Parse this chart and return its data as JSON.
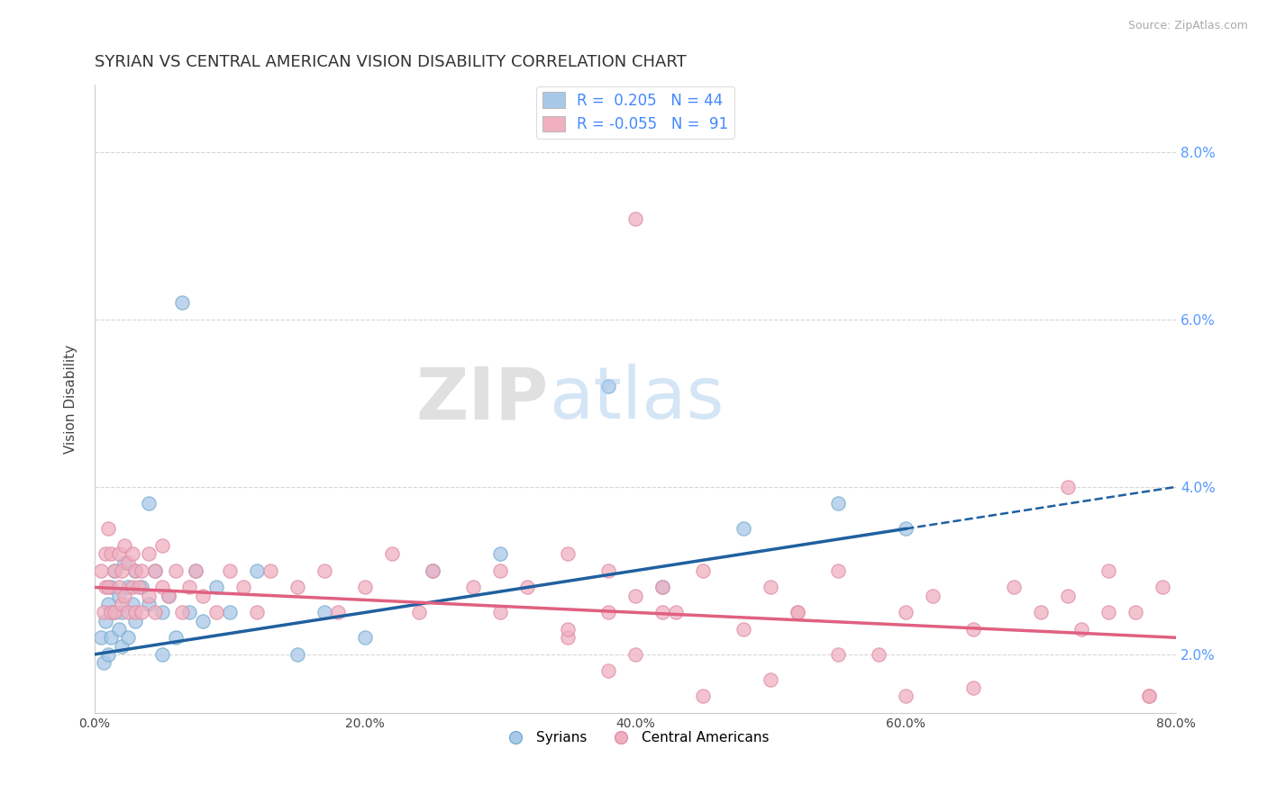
{
  "title": "SYRIAN VS CENTRAL AMERICAN VISION DISABILITY CORRELATION CHART",
  "source": "Source: ZipAtlas.com",
  "ylabel": "Vision Disability",
  "xlim": [
    0.0,
    0.8
  ],
  "ylim": [
    0.013,
    0.088
  ],
  "xticks": [
    0.0,
    0.1,
    0.2,
    0.3,
    0.4,
    0.5,
    0.6,
    0.7,
    0.8
  ],
  "xticklabels": [
    "0.0%",
    "",
    "20.0%",
    "",
    "40.0%",
    "",
    "60.0%",
    "",
    "80.0%"
  ],
  "yticks": [
    0.02,
    0.04,
    0.06,
    0.08
  ],
  "yticklabels": [
    "2.0%",
    "4.0%",
    "6.0%",
    "8.0%"
  ],
  "blue_color": "#a8c8e8",
  "blue_edge_color": "#7aaed0",
  "pink_color": "#f0b0c0",
  "pink_edge_color": "#e090a8",
  "blue_line_color": "#2060a0",
  "pink_line_color": "#e06080",
  "legend_text_color": "#4488ff",
  "R_blue": 0.205,
  "N_blue": 44,
  "R_pink": -0.055,
  "N_pink": 91,
  "blue_scatter_x": [
    0.005,
    0.007,
    0.008,
    0.01,
    0.01,
    0.012,
    0.012,
    0.015,
    0.015,
    0.018,
    0.018,
    0.02,
    0.02,
    0.022,
    0.025,
    0.025,
    0.028,
    0.03,
    0.03,
    0.035,
    0.04,
    0.04,
    0.045,
    0.05,
    0.05,
    0.055,
    0.06,
    0.065,
    0.07,
    0.075,
    0.08,
    0.09,
    0.1,
    0.12,
    0.15,
    0.17,
    0.2,
    0.25,
    0.3,
    0.38,
    0.42,
    0.48,
    0.55,
    0.6
  ],
  "blue_scatter_y": [
    0.022,
    0.019,
    0.024,
    0.026,
    0.02,
    0.028,
    0.022,
    0.03,
    0.025,
    0.023,
    0.027,
    0.025,
    0.021,
    0.031,
    0.028,
    0.022,
    0.026,
    0.03,
    0.024,
    0.028,
    0.038,
    0.026,
    0.03,
    0.025,
    0.02,
    0.027,
    0.022,
    0.062,
    0.025,
    0.03,
    0.024,
    0.028,
    0.025,
    0.03,
    0.02,
    0.025,
    0.022,
    0.03,
    0.032,
    0.052,
    0.028,
    0.035,
    0.038,
    0.035
  ],
  "pink_scatter_x": [
    0.005,
    0.007,
    0.008,
    0.008,
    0.01,
    0.01,
    0.012,
    0.012,
    0.015,
    0.015,
    0.018,
    0.018,
    0.02,
    0.02,
    0.022,
    0.022,
    0.025,
    0.025,
    0.028,
    0.028,
    0.03,
    0.03,
    0.033,
    0.035,
    0.035,
    0.04,
    0.04,
    0.045,
    0.045,
    0.05,
    0.05,
    0.055,
    0.06,
    0.065,
    0.07,
    0.075,
    0.08,
    0.09,
    0.1,
    0.11,
    0.12,
    0.13,
    0.15,
    0.17,
    0.18,
    0.2,
    0.22,
    0.24,
    0.25,
    0.28,
    0.3,
    0.3,
    0.32,
    0.35,
    0.35,
    0.38,
    0.38,
    0.4,
    0.4,
    0.42,
    0.43,
    0.45,
    0.48,
    0.5,
    0.52,
    0.55,
    0.58,
    0.6,
    0.62,
    0.65,
    0.68,
    0.7,
    0.72,
    0.72,
    0.73,
    0.75,
    0.75,
    0.77,
    0.78,
    0.79,
    0.38,
    0.4,
    0.35,
    0.42,
    0.45,
    0.5,
    0.52,
    0.55,
    0.6,
    0.65,
    0.78
  ],
  "pink_scatter_y": [
    0.03,
    0.025,
    0.032,
    0.028,
    0.035,
    0.028,
    0.032,
    0.025,
    0.03,
    0.025,
    0.028,
    0.032,
    0.03,
    0.026,
    0.033,
    0.027,
    0.031,
    0.025,
    0.028,
    0.032,
    0.03,
    0.025,
    0.028,
    0.03,
    0.025,
    0.032,
    0.027,
    0.03,
    0.025,
    0.028,
    0.033,
    0.027,
    0.03,
    0.025,
    0.028,
    0.03,
    0.027,
    0.025,
    0.03,
    0.028,
    0.025,
    0.03,
    0.028,
    0.03,
    0.025,
    0.028,
    0.032,
    0.025,
    0.03,
    0.028,
    0.03,
    0.025,
    0.028,
    0.032,
    0.022,
    0.025,
    0.03,
    0.027,
    0.072,
    0.028,
    0.025,
    0.03,
    0.023,
    0.028,
    0.025,
    0.03,
    0.02,
    0.025,
    0.027,
    0.023,
    0.028,
    0.025,
    0.04,
    0.027,
    0.023,
    0.025,
    0.03,
    0.025,
    0.015,
    0.028,
    0.018,
    0.02,
    0.023,
    0.025,
    0.015,
    0.017,
    0.025,
    0.02,
    0.015,
    0.016,
    0.015
  ],
  "bg_color": "#ffffff",
  "grid_color": "#cccccc",
  "title_fontsize": 13,
  "axis_label_fontsize": 11,
  "tick_fontsize": 10
}
